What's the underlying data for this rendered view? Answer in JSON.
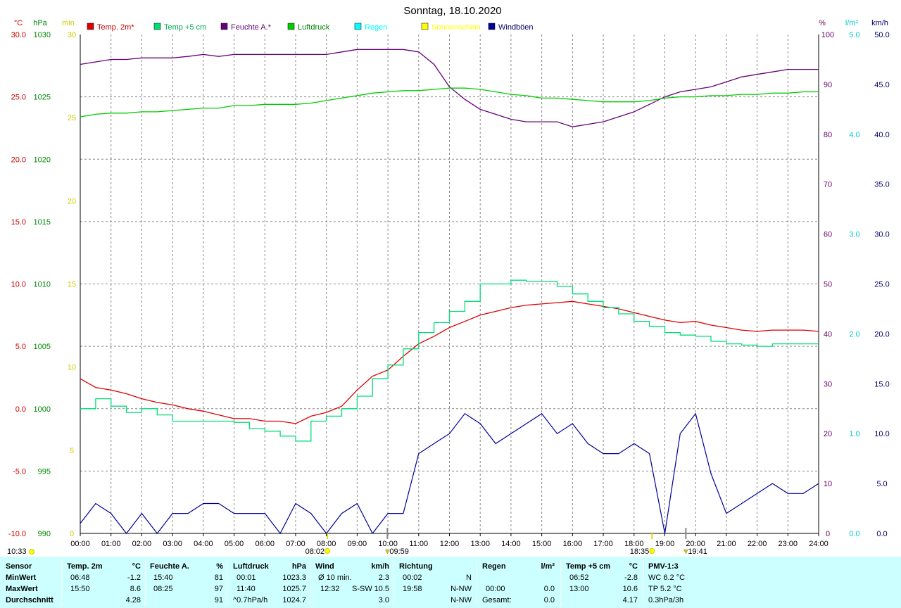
{
  "title": "Sonntag, 18.10.2020",
  "colors": {
    "temp2m": "#dd0000",
    "temp5cm": "#00dd77",
    "humidity": "#660077",
    "pressure": "#00cc00",
    "rain": "#00ffff",
    "sun": "#ffff00",
    "gust": "#000099",
    "left_axis": "#cc0000",
    "pressure_axis": "#008800",
    "min_axis": "#cccc00",
    "pct_axis": "#660066",
    "rain_axis": "#00cccc",
    "kmh_axis": "#000066"
  },
  "chart_data": {
    "type": "line",
    "x_range": [
      "00:00",
      "24:00"
    ],
    "x_ticks": [
      "00:00",
      "01:00",
      "02:00",
      "03:00",
      "04:00",
      "05:00",
      "06:00",
      "07:00",
      "08:00",
      "09:00",
      "10:00",
      "11:00",
      "12:00",
      "13:00",
      "14:00",
      "15:00",
      "16:00",
      "17:00",
      "18:00",
      "19:00",
      "20:00",
      "21:00",
      "22:00",
      "23:00",
      "24:00"
    ],
    "axes": {
      "temp": {
        "unit": "°C",
        "range": [
          -10,
          30
        ],
        "ticks": [
          "30.0",
          "25.0",
          "20.0",
          "15.0",
          "10.0",
          "5.0",
          "0.0",
          "-5.0",
          "-10.0"
        ]
      },
      "pressure": {
        "unit": "hPa",
        "range": [
          990,
          1030
        ],
        "ticks": [
          "1030",
          "1025",
          "1020",
          "1015",
          "1010",
          "1005",
          "1000",
          "995",
          "990"
        ]
      },
      "sunshine": {
        "unit": "min",
        "range": [
          0,
          30
        ],
        "ticks": [
          "30",
          "25",
          "20",
          "15",
          "10",
          "5",
          "0"
        ]
      },
      "humidity": {
        "unit": "%",
        "range": [
          0,
          100
        ],
        "ticks": [
          "100",
          "90",
          "80",
          "70",
          "60",
          "50",
          "40",
          "30",
          "20",
          "10",
          "0"
        ]
      },
      "rain": {
        "unit": "l/m²",
        "range": [
          0,
          5
        ],
        "ticks": [
          "5.0",
          "4.0",
          "3.0",
          "2.0",
          "1.0",
          "0.0"
        ]
      },
      "wind": {
        "unit": "km/h",
        "range": [
          0,
          50
        ],
        "ticks": [
          "50.0",
          "45.0",
          "40.0",
          "35.0",
          "30.0",
          "25.0",
          "20.0",
          "15.0",
          "10.0",
          "5.0",
          "0.0"
        ]
      }
    },
    "grid": true,
    "legend_position": "top",
    "legend": [
      "Temp. 2m*",
      "Temp +5 cm",
      "Feuchte A.*",
      "Luftdruck",
      "Regen",
      "Sonnenschein",
      "Windböen"
    ],
    "series": [
      {
        "name": "Temp. 2m*",
        "axis": "temp",
        "x": [
          0,
          0.5,
          1,
          1.5,
          2,
          2.5,
          3,
          3.5,
          4,
          4.5,
          5,
          5.5,
          6,
          6.5,
          7,
          7.5,
          8,
          8.5,
          9,
          9.5,
          10,
          10.5,
          11,
          11.5,
          12,
          12.5,
          13,
          13.5,
          14,
          14.5,
          15,
          15.5,
          16,
          16.5,
          17,
          17.5,
          18,
          18.5,
          19,
          19.5,
          20,
          20.5,
          21,
          21.5,
          22,
          22.5,
          23,
          23.5,
          24
        ],
        "y": [
          2.4,
          1.7,
          1.5,
          1.2,
          0.8,
          0.5,
          0.3,
          0,
          -0.2,
          -0.5,
          -0.8,
          -0.8,
          -1,
          -1,
          -1.2,
          -0.6,
          -0.3,
          0.2,
          1.5,
          2.6,
          3.1,
          4.2,
          5.2,
          5.8,
          6.5,
          7,
          7.5,
          7.8,
          8.1,
          8.3,
          8.4,
          8.5,
          8.6,
          8.4,
          8.2,
          8,
          7.7,
          7.4,
          7.1,
          6.9,
          7,
          6.7,
          6.5,
          6.3,
          6.2,
          6.3,
          6.3,
          6.3,
          6.2
        ]
      },
      {
        "name": "Temp +5 cm",
        "axis": "temp",
        "x": [
          0,
          0.5,
          1,
          1.5,
          2,
          2.5,
          3,
          3.5,
          4,
          4.5,
          5,
          5.5,
          6,
          6.5,
          7,
          7.5,
          8,
          8.5,
          9,
          9.5,
          10,
          10.5,
          11,
          11.5,
          12,
          12.5,
          13,
          13.5,
          14,
          14.5,
          15,
          15.5,
          16,
          16.5,
          17,
          17.5,
          18,
          18.5,
          19,
          19.5,
          20,
          20.5,
          21,
          21.5,
          22,
          22.5,
          23,
          23.5,
          24
        ],
        "y": [
          0,
          0.8,
          0.2,
          -0.3,
          0,
          -0.5,
          -1,
          -1,
          -1,
          -1,
          -1.1,
          -1.6,
          -1.8,
          -2.2,
          -2.6,
          -1,
          -0.6,
          0,
          1,
          2.4,
          3.5,
          4.8,
          6.1,
          6.9,
          7.8,
          8.6,
          10,
          10,
          10.3,
          10.2,
          10.2,
          9.8,
          9.2,
          8.6,
          8.1,
          7.6,
          7,
          6.6,
          6.1,
          5.9,
          5.8,
          5.4,
          5.2,
          5.1,
          5,
          5.2,
          5.2,
          5.2,
          5.2
        ]
      },
      {
        "name": "Feuchte A.*",
        "axis": "humidity",
        "x": [
          0,
          0.5,
          1,
          1.5,
          2,
          2.5,
          3,
          3.5,
          4,
          4.5,
          5,
          5.5,
          6,
          6.5,
          7,
          7.5,
          8,
          8.5,
          9,
          9.5,
          10,
          10.5,
          11,
          11.5,
          12,
          12.5,
          13,
          13.5,
          14,
          14.5,
          15,
          15.5,
          16,
          16.5,
          17,
          17.5,
          18,
          18.5,
          19,
          19.5,
          20,
          20.5,
          21,
          21.5,
          22,
          22.5,
          23,
          23.5,
          24
        ],
        "y": [
          94,
          94.5,
          95,
          95,
          95.3,
          95.3,
          95.3,
          95.6,
          96,
          95.6,
          96,
          96,
          96,
          96,
          96,
          96,
          96,
          96.5,
          97,
          97,
          97,
          97,
          96.5,
          94,
          89.5,
          87,
          85,
          84,
          83,
          82.5,
          82.5,
          82.5,
          81.5,
          82,
          82.5,
          83.5,
          84.5,
          86,
          87.5,
          88.5,
          89,
          89.5,
          90.5,
          91.5,
          92,
          92.5,
          93,
          93,
          93
        ]
      },
      {
        "name": "Luftdruck",
        "axis": "pressure",
        "x": [
          0,
          0.5,
          1,
          1.5,
          2,
          2.5,
          3,
          3.5,
          4,
          4.5,
          5,
          5.5,
          6,
          6.5,
          7,
          7.5,
          8,
          8.5,
          9,
          9.5,
          10,
          10.5,
          11,
          11.5,
          12,
          12.5,
          13,
          13.5,
          14,
          14.5,
          15,
          15.5,
          16,
          16.5,
          17,
          17.5,
          18,
          18.5,
          19,
          19.5,
          20,
          20.5,
          21,
          21.5,
          22,
          22.5,
          23,
          23.5,
          24
        ],
        "y": [
          1023.4,
          1023.6,
          1023.7,
          1023.7,
          1023.8,
          1023.8,
          1023.9,
          1024,
          1024.1,
          1024.1,
          1024.3,
          1024.3,
          1024.4,
          1024.4,
          1024.4,
          1024.5,
          1024.7,
          1024.9,
          1025.1,
          1025.3,
          1025.4,
          1025.5,
          1025.5,
          1025.6,
          1025.7,
          1025.7,
          1025.6,
          1025.4,
          1025.2,
          1025.1,
          1024.9,
          1024.9,
          1024.8,
          1024.7,
          1024.6,
          1024.6,
          1024.6,
          1024.7,
          1024.9,
          1025,
          1025,
          1025.1,
          1025.1,
          1025.2,
          1025.2,
          1025.3,
          1025.3,
          1025.4,
          1025.4
        ]
      },
      {
        "name": "Windböen",
        "axis": "wind",
        "x": [
          0,
          0.5,
          1,
          1.5,
          2,
          2.5,
          3,
          3.5,
          4,
          4.5,
          5,
          5.5,
          6,
          6.5,
          7,
          7.5,
          8,
          8.5,
          9,
          9.5,
          10,
          10.5,
          11,
          11.5,
          12,
          12.5,
          13,
          13.5,
          14,
          14.5,
          15,
          15.5,
          16,
          16.5,
          17,
          17.5,
          18,
          18.5,
          19,
          19.5,
          20,
          20.5,
          21,
          21.5,
          22,
          22.5,
          23,
          23.5,
          24
        ],
        "y": [
          1,
          3,
          2,
          0,
          2,
          0,
          2,
          2,
          3,
          3,
          2,
          2,
          2,
          0,
          3,
          2,
          0,
          2,
          3,
          0,
          2,
          2,
          8,
          9,
          10,
          12,
          11,
          9,
          10,
          11,
          12,
          10,
          11,
          9,
          8,
          8,
          9,
          8,
          0,
          10,
          12,
          6,
          2,
          3,
          4,
          5,
          4,
          4,
          5
        ]
      }
    ],
    "sunshine_markers": [
      {
        "label": "08:02",
        "x": "08:02"
      },
      {
        "label": "18:35",
        "x": "18:35"
      }
    ],
    "event_markers": [
      {
        "label": "09:59",
        "x": "09:59"
      },
      {
        "label": "19:41",
        "x": "19:41"
      }
    ],
    "corner_label": "10:33"
  },
  "stats_table": {
    "headers": {
      "sensor": "Sensor",
      "temp": "Temp. 2m",
      "temp_unit": "°C",
      "hum": "Feuchte A.",
      "hum_unit": "%",
      "pres": "Luftdruck",
      "pres_unit": "hPa",
      "wind": "Wind",
      "wind_unit": "km/h",
      "dir": "Richtung",
      "rain": "Regen",
      "rain_unit": "l/m²",
      "temp5": "Temp +5 cm",
      "temp5_unit": "°C",
      "pmv": "PMV-1:3"
    },
    "rows": [
      {
        "label": "MinWert",
        "temp_time": "06:48",
        "temp_val": "-1.2",
        "hum_time": "15:40",
        "hum_val": "81",
        "pres_time": "00:01",
        "pres_val": "1023.3",
        "wind_a": "Ø 10 min.",
        "wind_b": "",
        "wind_val": "2.3",
        "dir_time": "00:02",
        "dir_val": "N",
        "rain_time": "",
        "rain_val": "",
        "temp5_time": "06:52",
        "temp5_val": "-2.8",
        "pmv": "WC 6.2 °C"
      },
      {
        "label": "MaxWert",
        "temp_time": "15:50",
        "temp_val": "8.6",
        "hum_time": "08:25",
        "hum_val": "97",
        "pres_time": "11:40",
        "pres_val": "1025.7",
        "wind_a": "12:32",
        "wind_b": "S-SW",
        "wind_val": "10.5",
        "dir_time": "19:58",
        "dir_val": "N-NW",
        "rain_time": "00:00",
        "rain_val": "0.0",
        "temp5_time": "13:00",
        "temp5_val": "10.6",
        "pmv": "TP 5.2 °C"
      },
      {
        "label": "Durchschnitt",
        "temp_time": "",
        "temp_val": "4.28",
        "hum_time": "",
        "hum_val": "91",
        "pres_time": "^0.7hPa/h",
        "pres_val": "1024.7",
        "wind_a": "",
        "wind_b": "",
        "wind_val": "3.0",
        "dir_time": "",
        "dir_val": "N-NW",
        "rain_time": "Gesamt:",
        "rain_val": "0.0",
        "temp5_time": "",
        "temp5_val": "4.17",
        "pmv": "0.3hPa/3h"
      }
    ]
  }
}
